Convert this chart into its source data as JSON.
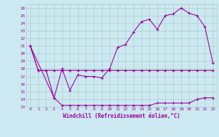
{
  "title": "",
  "xlabel": "Windchill (Refroidissement éolien,°C)",
  "bg_color": "#cce8f0",
  "grid_color": "#aacccc",
  "line_color": "#990099",
  "marker": "+",
  "xlim": [
    -0.5,
    23.5
  ],
  "ylim": [
    13,
    26.5
  ],
  "xticks": [
    0,
    1,
    2,
    3,
    4,
    5,
    6,
    7,
    8,
    9,
    10,
    11,
    12,
    13,
    14,
    15,
    16,
    17,
    18,
    19,
    20,
    21,
    22,
    23
  ],
  "yticks": [
    13,
    14,
    15,
    16,
    17,
    18,
    19,
    20,
    21,
    22,
    23,
    24,
    25,
    26
  ],
  "series": [
    {
      "x": [
        0,
        1,
        2,
        3,
        4,
        5,
        6,
        7,
        8,
        9,
        10,
        11,
        12,
        13,
        14,
        15,
        16,
        17,
        18,
        19,
        20,
        21,
        22,
        23
      ],
      "y": [
        21,
        17.8,
        17.8,
        17.8,
        17.8,
        17.8,
        17.8,
        17.8,
        17.8,
        17.8,
        17.8,
        17.8,
        17.8,
        17.8,
        17.8,
        17.8,
        17.8,
        17.8,
        17.8,
        17.8,
        17.8,
        17.8,
        17.8,
        17.8
      ]
    },
    {
      "x": [
        0,
        1,
        2,
        3,
        4,
        5,
        6,
        7,
        8,
        9,
        10,
        11,
        12,
        13,
        14,
        15,
        16,
        17,
        18,
        19,
        20,
        21,
        22,
        23
      ],
      "y": [
        21,
        17.8,
        17.8,
        14.2,
        13.2,
        13.2,
        13.2,
        13.2,
        13.2,
        13.2,
        13.2,
        13.2,
        13.2,
        13.2,
        13.2,
        13.2,
        13.5,
        13.5,
        13.5,
        13.5,
        13.5,
        14.0,
        14.2,
        14.2
      ]
    },
    {
      "x": [
        0,
        3,
        4,
        5,
        6,
        7,
        8,
        9,
        10,
        11,
        12,
        13,
        14,
        15,
        16,
        17,
        18,
        19,
        20,
        21,
        22,
        23
      ],
      "y": [
        21,
        14.2,
        18.0,
        15.2,
        17.2,
        17.0,
        17.0,
        16.8,
        18.0,
        20.8,
        21.2,
        22.8,
        24.2,
        24.5,
        23.2,
        25.0,
        25.2,
        26.0,
        25.3,
        25.0,
        23.5,
        18.8
      ]
    }
  ]
}
